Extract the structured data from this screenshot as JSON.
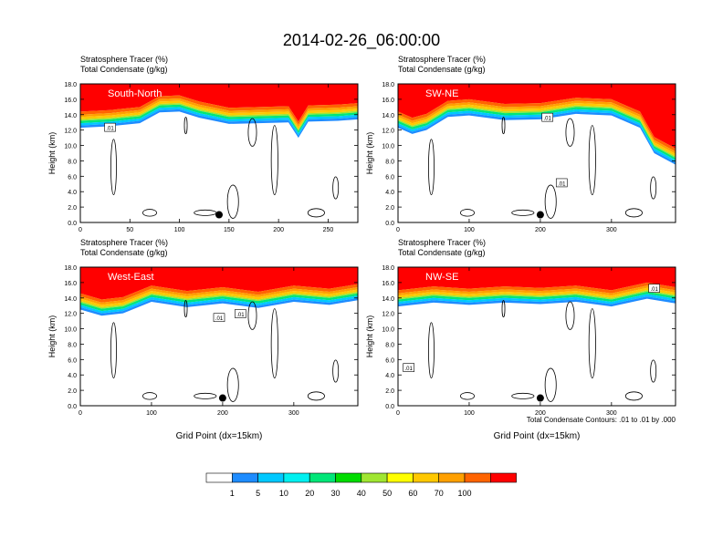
{
  "figure": {
    "title": "2014-02-26_06:00:00",
    "note": "Total Condensate Contours: .01 to .01 by .000"
  },
  "colors": {
    "frame": "#000000",
    "scale": [
      "#ffffff",
      "#1e8cff",
      "#00c8ff",
      "#00f0f0",
      "#00e678",
      "#00dc00",
      "#a0e632",
      "#ffff00",
      "#ffc800",
      "#ffa000",
      "#ff6400",
      "#ff0000"
    ]
  },
  "colorbar": {
    "labels": [
      "1",
      "5",
      "10",
      "20",
      "30",
      "40",
      "50",
      "60",
      "70",
      "100"
    ]
  },
  "chart_data": [
    {
      "type": "heatmap",
      "name": "South-North",
      "label": "South-North",
      "title_left_1": "Stratosphere Tracer   (%)",
      "title_left_2": "Total Condensate   (g/kg)",
      "ylabel": "Height (km)",
      "xlabel": "",
      "xlim": [
        0,
        280
      ],
      "ylim": [
        0,
        18
      ],
      "xticks": [
        0,
        50,
        100,
        150,
        200,
        250
      ],
      "xtick_labels": [
        "0",
        "50",
        "100",
        "150",
        "200",
        "250"
      ],
      "yticks": [
        0,
        2,
        4,
        6,
        8,
        10,
        12,
        14,
        16,
        18
      ],
      "ytick_labels": [
        "0.0",
        "2.0",
        "4.0",
        "6.0",
        "8.0",
        "10.0",
        "12.0",
        "14.0",
        "16.0",
        "18.0"
      ],
      "tropopause_km": [
        [
          0,
          13.8
        ],
        [
          30,
          14.0
        ],
        [
          60,
          14.4
        ],
        [
          80,
          15.8
        ],
        [
          100,
          15.9
        ],
        [
          120,
          15.1
        ],
        [
          150,
          14.3
        ],
        [
          180,
          14.4
        ],
        [
          210,
          14.5
        ],
        [
          220,
          12.5
        ],
        [
          230,
          14.6
        ],
        [
          260,
          14.7
        ],
        [
          280,
          14.9
        ]
      ],
      "contour_label": ".01",
      "contour_label_pos": [
        30,
        12.3
      ],
      "marker": [
        140,
        1.0
      ]
    },
    {
      "type": "heatmap",
      "name": "SW-NE",
      "label": "SW-NE",
      "title_left_1": "Stratosphere Tracer   (%)",
      "title_left_2": "Total Condensate   (g/kg)",
      "ylabel": "Height (km)",
      "xlabel": "",
      "xlim": [
        0,
        390
      ],
      "ylim": [
        0,
        18
      ],
      "xticks": [
        0,
        100,
        200,
        300
      ],
      "xtick_labels": [
        "0",
        "100",
        "200",
        "300"
      ],
      "yticks": [
        0,
        2,
        4,
        6,
        8,
        10,
        12,
        14,
        16,
        18
      ],
      "ytick_labels": [
        "0.0",
        "2.0",
        "4.0",
        "6.0",
        "8.0",
        "10.0",
        "12.0",
        "14.0",
        "16.0",
        "18.0"
      ],
      "tropopause_km": [
        [
          0,
          13.8
        ],
        [
          20,
          13.0
        ],
        [
          40,
          13.5
        ],
        [
          70,
          15.2
        ],
        [
          100,
          15.4
        ],
        [
          150,
          14.8
        ],
        [
          200,
          14.9
        ],
        [
          250,
          15.6
        ],
        [
          300,
          15.4
        ],
        [
          340,
          13.8
        ],
        [
          360,
          10.5
        ],
        [
          390,
          9.0
        ]
      ],
      "contour_label": ".01",
      "contour_label_pos": [
        210,
        13.6
      ],
      "contour_label_2": ".01",
      "contour_label_2_pos": [
        230,
        5.1
      ],
      "marker": [
        200,
        1.0
      ]
    },
    {
      "type": "heatmap",
      "name": "West-East",
      "label": "West-East",
      "title_left_1": "Stratosphere Tracer   (%)",
      "title_left_2": "Total Condensate   (g/kg)",
      "ylabel": "Height (km)",
      "xlabel": "Grid Point (dx=15km)",
      "xlim": [
        0,
        390
      ],
      "ylim": [
        0,
        18
      ],
      "xticks": [
        0,
        100,
        200,
        300
      ],
      "xtick_labels": [
        "0",
        "100",
        "200",
        "300"
      ],
      "yticks": [
        0,
        2,
        4,
        6,
        8,
        10,
        12,
        14,
        16,
        18
      ],
      "ytick_labels": [
        "0.0",
        "2.0",
        "4.0",
        "6.0",
        "8.0",
        "10.0",
        "12.0",
        "14.0",
        "16.0",
        "18.0"
      ],
      "tropopause_km": [
        [
          0,
          14.0
        ],
        [
          30,
          13.2
        ],
        [
          60,
          13.5
        ],
        [
          100,
          15.0
        ],
        [
          150,
          14.3
        ],
        [
          200,
          14.8
        ],
        [
          250,
          14.2
        ],
        [
          300,
          15.0
        ],
        [
          350,
          14.6
        ],
        [
          390,
          15.2
        ]
      ],
      "contour_label": ".01",
      "contour_label_pos": [
        195,
        11.4
      ],
      "contour_label_2": ".01",
      "contour_label_2_pos": [
        225,
        11.9
      ],
      "marker": [
        200,
        1.0
      ]
    },
    {
      "type": "heatmap",
      "name": "NW-SE",
      "label": "NW-SE",
      "title_left_1": "Stratosphere Tracer   (%)",
      "title_left_2": "Total Condensate   (g/kg)",
      "ylabel": "Height (km)",
      "xlabel": "Grid Point (dx=15km)",
      "xlim": [
        0,
        390
      ],
      "ylim": [
        0,
        18
      ],
      "xticks": [
        0,
        100,
        200,
        300
      ],
      "xtick_labels": [
        "0",
        "100",
        "200",
        "300"
      ],
      "yticks": [
        0,
        2,
        4,
        6,
        8,
        10,
        12,
        14,
        16,
        18
      ],
      "ytick_labels": [
        "0.0",
        "2.0",
        "4.0",
        "6.0",
        "8.0",
        "10.0",
        "12.0",
        "14.0",
        "16.0",
        "18.0"
      ],
      "tropopause_km": [
        [
          0,
          14.4
        ],
        [
          50,
          14.9
        ],
        [
          100,
          14.6
        ],
        [
          150,
          14.9
        ],
        [
          200,
          14.7
        ],
        [
          250,
          15.0
        ],
        [
          300,
          14.4
        ],
        [
          350,
          15.4
        ],
        [
          390,
          14.8
        ]
      ],
      "contour_label": ".01",
      "contour_label_pos": [
        15,
        4.9
      ],
      "contour_label_2": ".01",
      "contour_label_2_pos": [
        360,
        15.2
      ],
      "marker": [
        200,
        1.0
      ]
    }
  ]
}
